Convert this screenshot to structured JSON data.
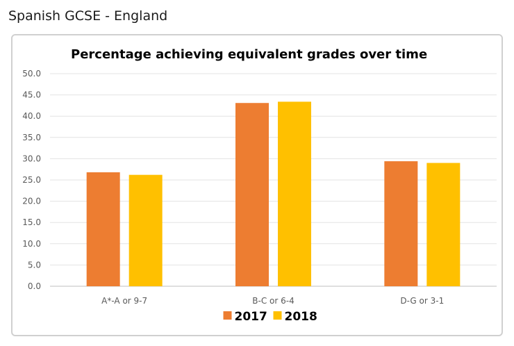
{
  "page": {
    "title": "Spanish GCSE - England"
  },
  "chart_data": {
    "type": "bar",
    "title": "Percentage achieving equivalent grades over time",
    "xlabel": "",
    "ylabel": "",
    "categories": [
      "A*-A or 9-7",
      "B-C or 6-4",
      "D-G or 3-1"
    ],
    "series": [
      {
        "name": "2017",
        "color": "#ED7D31",
        "values": [
          26.8,
          43.1,
          29.4
        ]
      },
      {
        "name": "2018",
        "color": "#FFC000",
        "values": [
          26.2,
          43.4,
          29.0
        ]
      }
    ],
    "ylim": [
      0,
      50
    ],
    "yticks": [
      0,
      5,
      10,
      15,
      20,
      25,
      30,
      35,
      40,
      45,
      50
    ],
    "ytick_labels": [
      "0.0",
      "5.0",
      "10.0",
      "15.0",
      "20.0",
      "25.0",
      "30.0",
      "35.0",
      "40.0",
      "45.0",
      "50.0"
    ],
    "grid": true,
    "legend": "bottom"
  }
}
